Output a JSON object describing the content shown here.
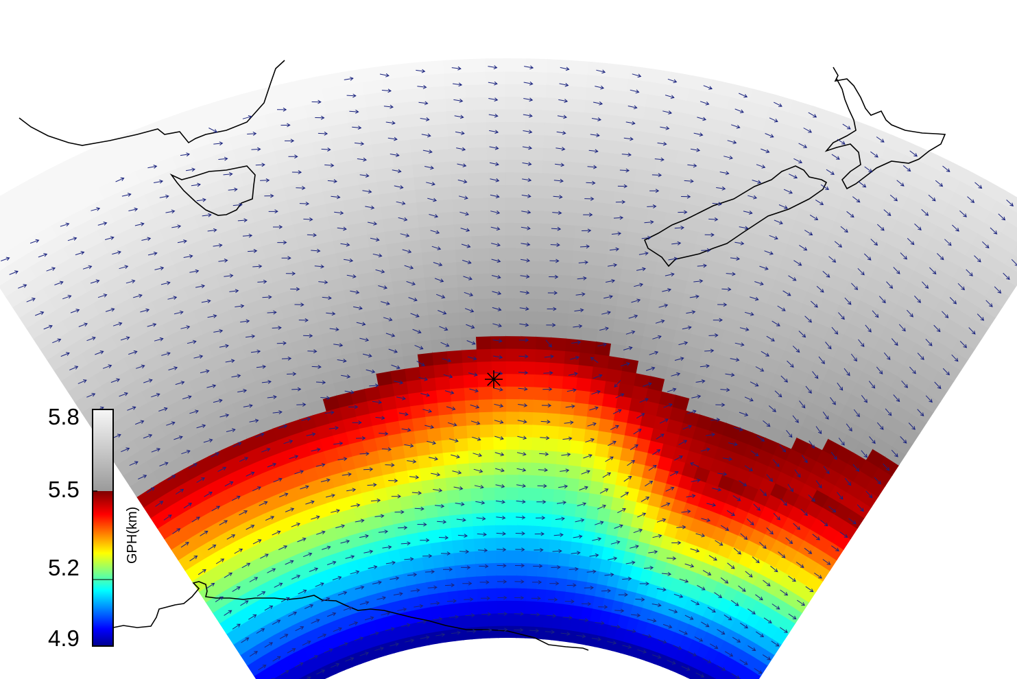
{
  "map": {
    "variable": "GPH",
    "units": "km",
    "cmap": "jet (4.9–5.5) + gray (5.5–5.8)",
    "field": {
      "min_km": 4.9,
      "max_km": 5.8,
      "gray_threshold_km": 5.5
    }
  },
  "colorbar": {
    "label": "GPH(km)",
    "ticks": [
      {
        "label": "5.8",
        "value": 5.8
      },
      {
        "label": "5.5",
        "value": 5.5
      },
      {
        "label": "5.2",
        "value": 5.2
      },
      {
        "label": "4.9",
        "value": 4.9
      }
    ],
    "range": [
      4.9,
      5.8
    ]
  },
  "markers": {
    "center_marker_symbol": "asterisk"
  },
  "vectors": {
    "color": "#1a237e",
    "description_key": "wind-arrows"
  },
  "colors": {
    "arrow": "#1a237e",
    "coast": "#000000",
    "gray_light": "#f5f5f5",
    "gray_dark": "#9a9a9a"
  }
}
